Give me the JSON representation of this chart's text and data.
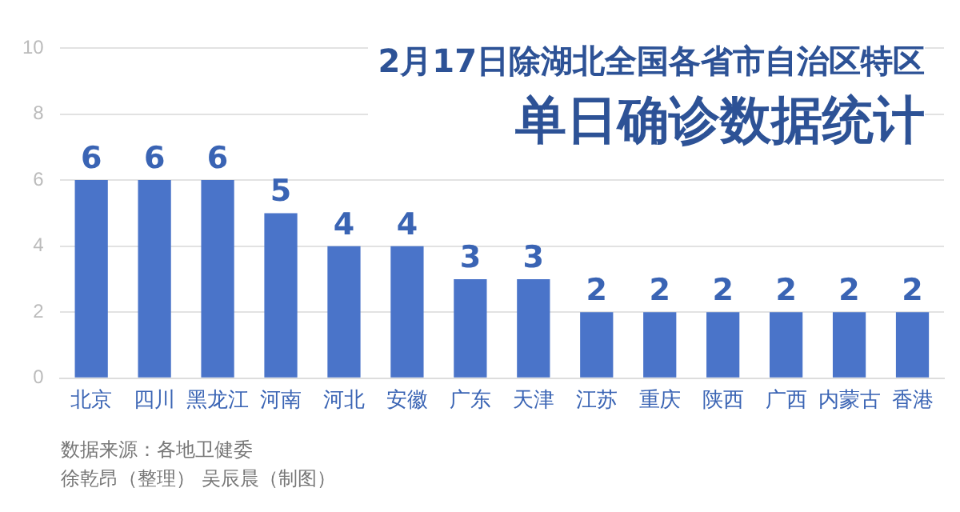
{
  "chart_data": {
    "type": "bar",
    "title": "2月17日除湖北全国各省市自治区特区",
    "subtitle": "单日确诊数据统计",
    "categories": [
      "北京",
      "四川",
      "黑龙江",
      "河南",
      "河北",
      "安徽",
      "广东",
      "天津",
      "江苏",
      "重庆",
      "陕西",
      "广西",
      "内蒙古",
      "香港"
    ],
    "values": [
      6,
      6,
      6,
      5,
      4,
      4,
      3,
      3,
      2,
      2,
      2,
      2,
      2,
      2
    ],
    "color": "#4a74c9",
    "ylim": [
      0,
      10
    ],
    "yticks": [
      0,
      2,
      4,
      6,
      8,
      10
    ],
    "grid": "y",
    "data_labels": true,
    "annotations": [
      "数据来源：各地卫健委",
      "徐乾昂（整理） 吴辰晨（制图）"
    ]
  }
}
